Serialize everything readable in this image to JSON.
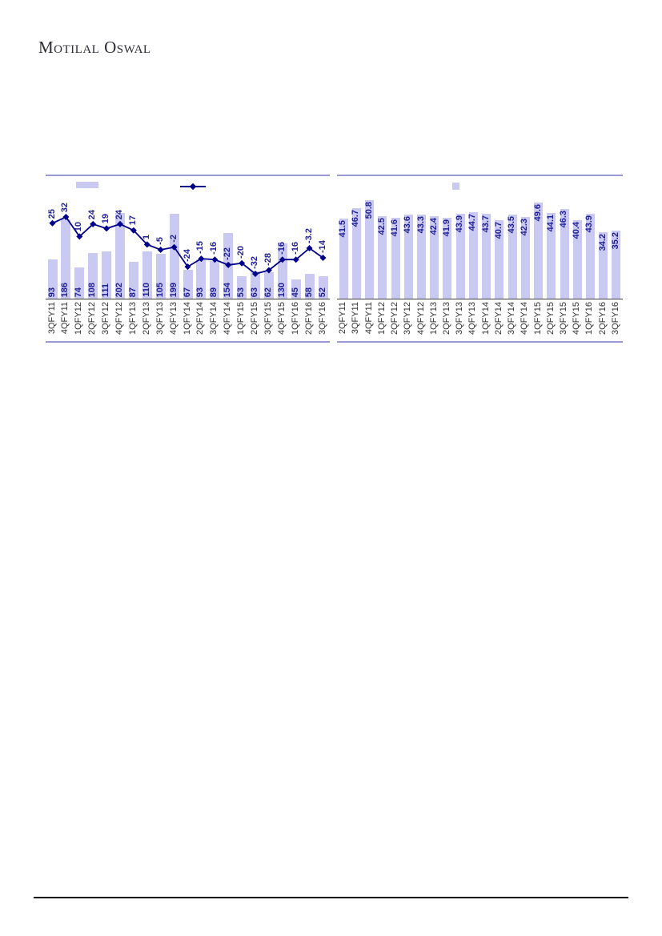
{
  "logo": {
    "text": "Motilal Oswal"
  },
  "colors": {
    "bar_fill": "#c9c9f1",
    "line": "#00008b",
    "value_label": "#1f1f96",
    "tick_label": "#333333",
    "frame": "#9a99d6",
    "axis_line": "#404040",
    "footer_rule": "#000000",
    "logo_text": "#2c2c34"
  },
  "chart_data": [
    {
      "type": "bar",
      "panel": "left",
      "title": "",
      "xlabel": "",
      "ylabel": "",
      "grid": false,
      "legend_position": "top",
      "legend": [
        {
          "swatch": "bar-swatch",
          "label": ""
        },
        {
          "swatch": "line-swatch",
          "label": ""
        }
      ],
      "categories": [
        "3QFY11",
        "4QFY11",
        "1QFY12",
        "2QFY12",
        "3QFY12",
        "4QFY12",
        "1QFY13",
        "2QFY13",
        "3QFY13",
        "4QFY13",
        "1QFY14",
        "2QFY14",
        "3QFY14",
        "4QFY14",
        "1QFY15",
        "2QFY15",
        "3QFY15",
        "4QFY15",
        "1QFY16",
        "2QFY16",
        "3QFY16"
      ],
      "series": [
        {
          "name": "bars",
          "type": "bar",
          "values": [
            93,
            186,
            74,
            108,
            111,
            202,
            87,
            110,
            105,
            199,
            67,
            93,
            89,
            154,
            53,
            63,
            62,
            130,
            45,
            58,
            52
          ]
        },
        {
          "name": "line",
          "type": "line",
          "values": [
            25,
            32,
            10,
            24,
            19,
            24,
            17,
            1,
            -5,
            -2,
            -24,
            -15,
            -16,
            -22,
            -20,
            -32,
            -28,
            -16,
            -16,
            -3.2,
            -14
          ]
        }
      ],
      "bar_ylim": [
        0,
        250
      ],
      "line_ylim": [
        -60,
        60
      ],
      "value_label_pos": "inside-base"
    },
    {
      "type": "bar",
      "panel": "right",
      "title": "",
      "xlabel": "",
      "ylabel": "",
      "grid": false,
      "legend_position": "top",
      "legend": [
        {
          "swatch": "bar-swatch",
          "label": ""
        }
      ],
      "categories": [
        "2QFY11",
        "3QFY11",
        "4QFY11",
        "1QFY12",
        "2QFY12",
        "3QFY12",
        "4QFY12",
        "1QFY13",
        "2QFY13",
        "3QFY13",
        "4QFY13",
        "1QFY14",
        "2QFY14",
        "3QFY14",
        "4QFY14",
        "1QFY15",
        "2QFY15",
        "3QFY15",
        "4QFY15",
        "1QFY16",
        "2QFY16",
        "3QFY16"
      ],
      "series": [
        {
          "name": "bars",
          "type": "bar",
          "values": [
            41.5,
            46.7,
            50.8,
            42.5,
            41.6,
            43.6,
            43.3,
            42.4,
            41.9,
            43.9,
            44.7,
            43.7,
            40.7,
            43.5,
            42.3,
            49.6,
            44.1,
            46.3,
            40.4,
            43.9,
            34.2,
            35.2
          ]
        }
      ],
      "bar_ylim": [
        0,
        55
      ],
      "value_label_pos": "inside-end"
    }
  ]
}
